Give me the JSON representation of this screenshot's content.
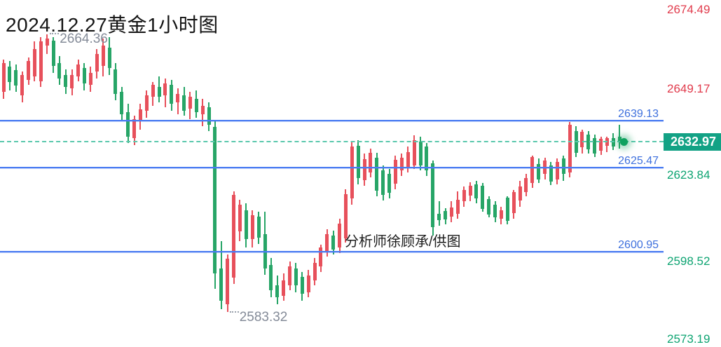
{
  "title": "2024.12.27黄金1小时图",
  "watermark": "分析师徐顾承/供图",
  "price_tag": {
    "value": "2632.97",
    "bg_color": "#13a285",
    "text_color": "#ffffff"
  },
  "extremes": {
    "high": {
      "label": "2664.36",
      "price": 2664.36,
      "candle_index": 7
    },
    "low": {
      "label": "2583.32",
      "price": 2583.32,
      "candle_index": 36
    }
  },
  "levels": [
    {
      "label": "2639.13",
      "price": 2639.13
    },
    {
      "label": "2625.47",
      "price": 2625.47
    },
    {
      "label": "2600.95",
      "price": 2600.95
    }
  ],
  "current_price": {
    "label": "2632.97",
    "price": 2632.97
  },
  "axis": {
    "labels": [
      {
        "text": "2674.49",
        "tone": "above"
      },
      {
        "text": "2649.17",
        "tone": "above"
      },
      {
        "text": "2623.84",
        "tone": "below"
      },
      {
        "text": "2598.52",
        "tone": "below"
      },
      {
        "text": "2573.19",
        "tone": "below"
      }
    ],
    "above_color": "#e13b4c",
    "below_color": "#0ea472"
  },
  "palette": {
    "up_candle": "#e7505b",
    "down_candle": "#27a567",
    "level_line": "#4a7cf2",
    "level_text": "#3e70dd",
    "current_dashed": "#5bc8ad",
    "current_dot": "#0fa15f",
    "extreme_text": "#848b98"
  },
  "chart_data": {
    "type": "candlestick",
    "title": "2024.12.27黄金1小时图",
    "instrument": "黄金",
    "timeframe": "1小时",
    "high": 2664.36,
    "low": 2583.32,
    "last": 2632.97,
    "horizontal_levels": [
      2639.13,
      2625.47,
      2600.95
    ],
    "y_axis_ticks": [
      2674.49,
      2649.17,
      2623.84,
      2598.52,
      2573.19
    ],
    "grid": false,
    "candles_ohlc": [
      [
        2647.6,
        2657.0,
        2645.5,
        2655.9
      ],
      [
        2654.9,
        2656.5,
        2648.0,
        2650.5
      ],
      [
        2653.9,
        2655.5,
        2647.5,
        2649.4
      ],
      [
        2646.4,
        2653.5,
        2644.5,
        2652.5
      ],
      [
        2651.0,
        2657.5,
        2649.5,
        2656.5
      ],
      [
        2652.0,
        2662.3,
        2650.5,
        2660.0
      ],
      [
        2650.6,
        2663.5,
        2649.0,
        2662.3
      ],
      [
        2661.0,
        2664.36,
        2658.5,
        2663.0
      ],
      [
        2662.5,
        2663.5,
        2653.0,
        2655.0
      ],
      [
        2656.0,
        2658.0,
        2649.5,
        2651.5
      ],
      [
        2652.5,
        2654.0,
        2647.0,
        2649.0
      ],
      [
        2648.5,
        2654.0,
        2646.5,
        2652.5
      ],
      [
        2652.0,
        2657.0,
        2650.5,
        2655.5
      ],
      [
        2654.5,
        2656.0,
        2648.0,
        2650.0
      ],
      [
        2649.5,
        2655.0,
        2647.5,
        2653.0
      ],
      [
        2653.5,
        2660.0,
        2651.5,
        2658.5
      ],
      [
        2655.0,
        2663.0,
        2652.0,
        2661.0
      ],
      [
        2660.5,
        2663.5,
        2652.5,
        2654.5
      ],
      [
        2654.0,
        2656.0,
        2645.0,
        2647.0
      ],
      [
        2647.5,
        2649.0,
        2639.0,
        2641.0
      ],
      [
        2641.5,
        2644.0,
        2632.5,
        2634.5
      ],
      [
        2634.0,
        2640.5,
        2631.9,
        2639.5
      ],
      [
        2639.0,
        2644.0,
        2636.5,
        2642.5
      ],
      [
        2642.0,
        2648.0,
        2640.0,
        2646.5
      ],
      [
        2646.0,
        2650.5,
        2643.5,
        2649.5
      ],
      [
        2649.0,
        2652.1,
        2644.5,
        2646.0
      ],
      [
        2646.5,
        2651.5,
        2643.0,
        2650.0
      ],
      [
        2649.5,
        2651.0,
        2642.0,
        2644.0
      ],
      [
        2644.5,
        2648.5,
        2641.0,
        2647.0
      ],
      [
        2646.5,
        2649.0,
        2640.5,
        2642.0
      ],
      [
        2642.5,
        2647.5,
        2639.5,
        2646.0
      ],
      [
        2645.5,
        2648.0,
        2640.0,
        2641.5
      ],
      [
        2641.0,
        2645.5,
        2637.5,
        2643.5
      ],
      [
        2643.0,
        2644.5,
        2636.0,
        2637.8
      ],
      [
        2637.3,
        2639.0,
        2590.0,
        2594.5
      ],
      [
        2596.0,
        2604.0,
        2584.0,
        2586.5
      ],
      [
        2585.5,
        2600.0,
        2583.32,
        2598.8
      ],
      [
        2593.2,
        2618.5,
        2591.5,
        2617.4
      ],
      [
        2606.8,
        2616.0,
        2604.0,
        2614.6
      ],
      [
        2613.0,
        2615.0,
        2602.0,
        2604.5
      ],
      [
        2604.5,
        2613.0,
        2602.0,
        2611.5
      ],
      [
        2611.0,
        2612.5,
        2603.0,
        2605.0
      ],
      [
        2606.0,
        2612.5,
        2594.0,
        2596.0
      ],
      [
        2597.0,
        2599.0,
        2587.5,
        2589.5
      ],
      [
        2591.0,
        2594.0,
        2585.5,
        2587.5
      ],
      [
        2588.0,
        2594.5,
        2586.5,
        2592.5
      ],
      [
        2591.0,
        2598.0,
        2589.5,
        2596.5
      ],
      [
        2596.0,
        2597.5,
        2589.0,
        2591.0
      ],
      [
        2593.5,
        2595.0,
        2586.5,
        2588.5
      ],
      [
        2589.0,
        2595.5,
        2587.5,
        2594.0
      ],
      [
        2592.5,
        2599.0,
        2591.0,
        2597.5
      ],
      [
        2596.5,
        2603.0,
        2595.0,
        2602.0
      ],
      [
        2601.0,
        2607.5,
        2599.5,
        2606.0
      ],
      [
        2605.5,
        2607.0,
        2600.0,
        2601.5
      ],
      [
        2602.0,
        2610.5,
        2600.5,
        2609.0
      ],
      [
        2604.8,
        2619.0,
        2603.5,
        2617.6
      ],
      [
        2616.5,
        2633.0,
        2614.5,
        2631.5
      ],
      [
        2631.8,
        2633.5,
        2620.5,
        2622.3
      ],
      [
        2621.8,
        2629.5,
        2620.0,
        2627.9
      ],
      [
        2623.9,
        2631.0,
        2622.5,
        2629.7
      ],
      [
        2628.3,
        2629.8,
        2617.0,
        2618.7
      ],
      [
        2624.6,
        2626.0,
        2615.8,
        2617.4
      ],
      [
        2623.5,
        2625.0,
        2616.5,
        2618.0
      ],
      [
        2620.6,
        2629.0,
        2619.0,
        2627.6
      ],
      [
        2624.6,
        2629.5,
        2623.0,
        2628.3
      ],
      [
        2625.5,
        2631.5,
        2624.0,
        2630.0
      ],
      [
        2626.0,
        2634.8,
        2625.0,
        2633.5
      ],
      [
        2633.0,
        2634.5,
        2624.5,
        2626.1
      ],
      [
        2631.6,
        2632.5,
        2623.0,
        2624.6
      ],
      [
        2626.6,
        2627.5,
        2605.5,
        2608.0
      ],
      [
        2612.0,
        2615.5,
        2608.5,
        2610.0
      ],
      [
        2612.8,
        2613.5,
        2608.8,
        2610.3
      ],
      [
        2611.1,
        2615.5,
        2609.5,
        2613.8
      ],
      [
        2612.0,
        2618.5,
        2610.5,
        2616.0
      ],
      [
        2615.5,
        2620.0,
        2614.0,
        2618.8
      ],
      [
        2617.3,
        2621.2,
        2615.5,
        2620.2
      ],
      [
        2620.6,
        2621.5,
        2615.0,
        2616.5
      ],
      [
        2620.2,
        2621.0,
        2612.5,
        2613.4
      ],
      [
        2616.2,
        2617.0,
        2610.8,
        2611.8
      ],
      [
        2614.5,
        2615.5,
        2609.5,
        2610.8
      ],
      [
        2610.4,
        2614.0,
        2608.8,
        2613.0
      ],
      [
        2616.6,
        2617.0,
        2608.9,
        2609.8
      ],
      [
        2612.1,
        2618.8,
        2610.5,
        2618.2
      ],
      [
        2615.9,
        2621.5,
        2614.0,
        2620.0
      ],
      [
        2618.2,
        2623.5,
        2617.0,
        2622.3
      ],
      [
        2620.9,
        2629.0,
        2619.5,
        2628.5
      ],
      [
        2626.4,
        2628.0,
        2621.0,
        2622.0
      ],
      [
        2623.6,
        2628.2,
        2622.0,
        2627.4
      ],
      [
        2626.0,
        2627.0,
        2620.3,
        2621.3
      ],
      [
        2622.0,
        2628.0,
        2620.5,
        2627.0
      ],
      [
        2628.0,
        2629.0,
        2621.5,
        2623.5
      ],
      [
        2624.0,
        2638.8,
        2622.5,
        2638.0
      ],
      [
        2636.0,
        2637.5,
        2628.5,
        2629.8
      ],
      [
        2631.3,
        2636.5,
        2629.5,
        2635.8
      ],
      [
        2635.0,
        2636.0,
        2629.5,
        2630.7
      ],
      [
        2634.0,
        2635.0,
        2628.5,
        2629.6
      ],
      [
        2630.3,
        2634.5,
        2629.0,
        2633.8
      ],
      [
        2631.7,
        2634.5,
        2630.0,
        2634.0
      ],
      [
        2634.0,
        2635.5,
        2630.5,
        2631.5
      ],
      [
        2634.5,
        2637.9,
        2631.0,
        2632.97
      ]
    ]
  }
}
